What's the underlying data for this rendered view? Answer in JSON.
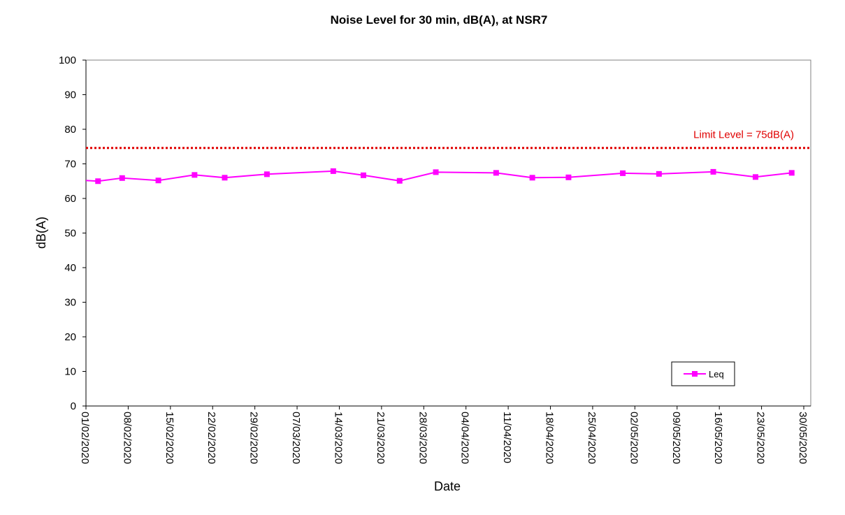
{
  "chart_data": {
    "type": "line",
    "title": "Noise Level for 30 min, dB(A), at NSR7",
    "xlabel": "Date",
    "ylabel": "dB(A)",
    "ylim": [
      0,
      100
    ],
    "yticks": [
      0,
      10,
      20,
      30,
      40,
      50,
      60,
      70,
      80,
      90,
      100
    ],
    "xlim": [
      "2020-02-01",
      "2020-05-30"
    ],
    "xtick_labels": [
      "01/02/2020",
      "08/02/2020",
      "15/02/2020",
      "22/02/2020",
      "29/02/2020",
      "07/03/2020",
      "14/03/2020",
      "21/03/2020",
      "28/03/2020",
      "04/04/2020",
      "11/04/2020",
      "18/04/2020",
      "25/04/2020",
      "02/05/2020",
      "09/05/2020",
      "16/05/2020",
      "23/05/2020",
      "30/05/2020"
    ],
    "grid": false,
    "legend": {
      "position": "bottom-right",
      "entries": [
        "Leq"
      ]
    },
    "series": [
      {
        "name": "Leq",
        "color": "#FF00FF",
        "marker": "square",
        "x": [
          "2020-02-03",
          "2020-02-07",
          "2020-02-13",
          "2020-02-19",
          "2020-02-24",
          "2020-03-02",
          "2020-03-13",
          "2020-03-18",
          "2020-03-24",
          "2020-03-30",
          "2020-04-09",
          "2020-04-15",
          "2020-04-21",
          "2020-04-30",
          "2020-05-06",
          "2020-05-15",
          "2020-05-22",
          "2020-05-28"
        ],
        "y": [
          65.0,
          65.9,
          65.2,
          66.8,
          66.0,
          67.0,
          67.9,
          66.7,
          65.1,
          67.6,
          67.4,
          66.0,
          66.1,
          67.3,
          67.1,
          67.7,
          66.2,
          67.4
        ]
      }
    ],
    "reference_lines": [
      {
        "label": "Limit Level = 75dB(A)",
        "y": 74.6,
        "color": "#E00000",
        "style": "dotted"
      }
    ]
  }
}
